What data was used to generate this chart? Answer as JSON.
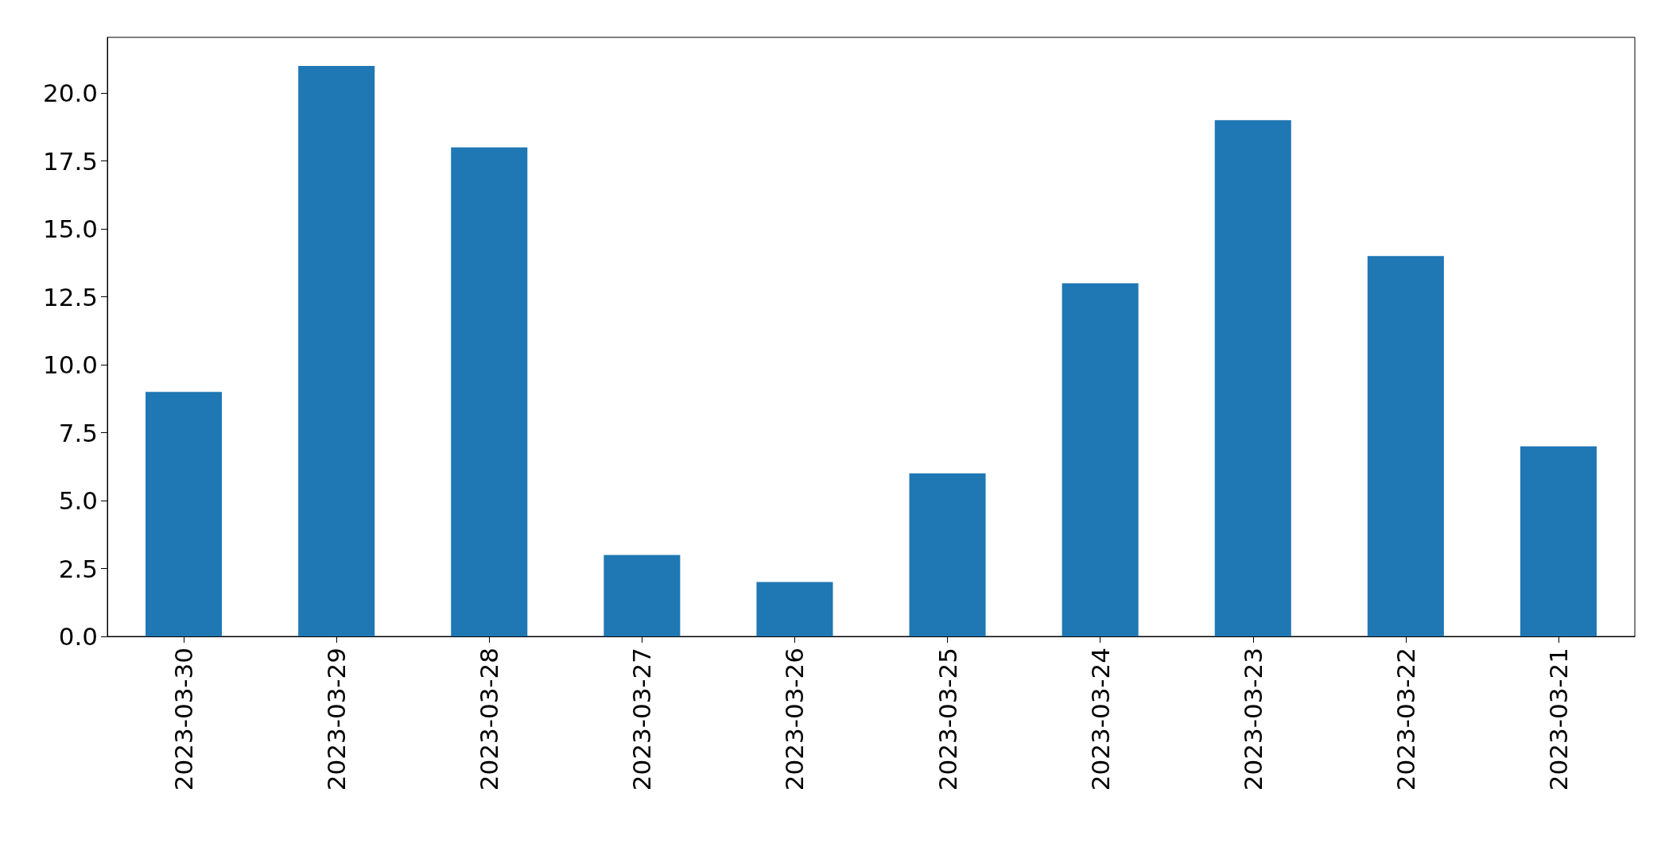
{
  "chart_data": {
    "type": "bar",
    "categories": [
      "2023-03-30",
      "2023-03-29",
      "2023-03-28",
      "2023-03-27",
      "2023-03-26",
      "2023-03-25",
      "2023-03-24",
      "2023-03-23",
      "2023-03-22",
      "2023-03-21"
    ],
    "values": [
      9,
      21,
      18,
      3,
      2,
      6,
      13,
      19,
      14,
      7
    ],
    "color": "#1f77b4",
    "ylim": [
      0,
      22.05
    ],
    "yticks": [
      {
        "value": 0,
        "label": "0.0"
      },
      {
        "value": 2.5,
        "label": "2.5"
      },
      {
        "value": 5,
        "label": "5.0"
      },
      {
        "value": 7.5,
        "label": "7.5"
      },
      {
        "value": 10,
        "label": "10.0"
      },
      {
        "value": 12.5,
        "label": "12.5"
      },
      {
        "value": 15,
        "label": "15.0"
      },
      {
        "value": 17.5,
        "label": "17.5"
      },
      {
        "value": 20,
        "label": "20.0"
      }
    ],
    "grid": false
  }
}
